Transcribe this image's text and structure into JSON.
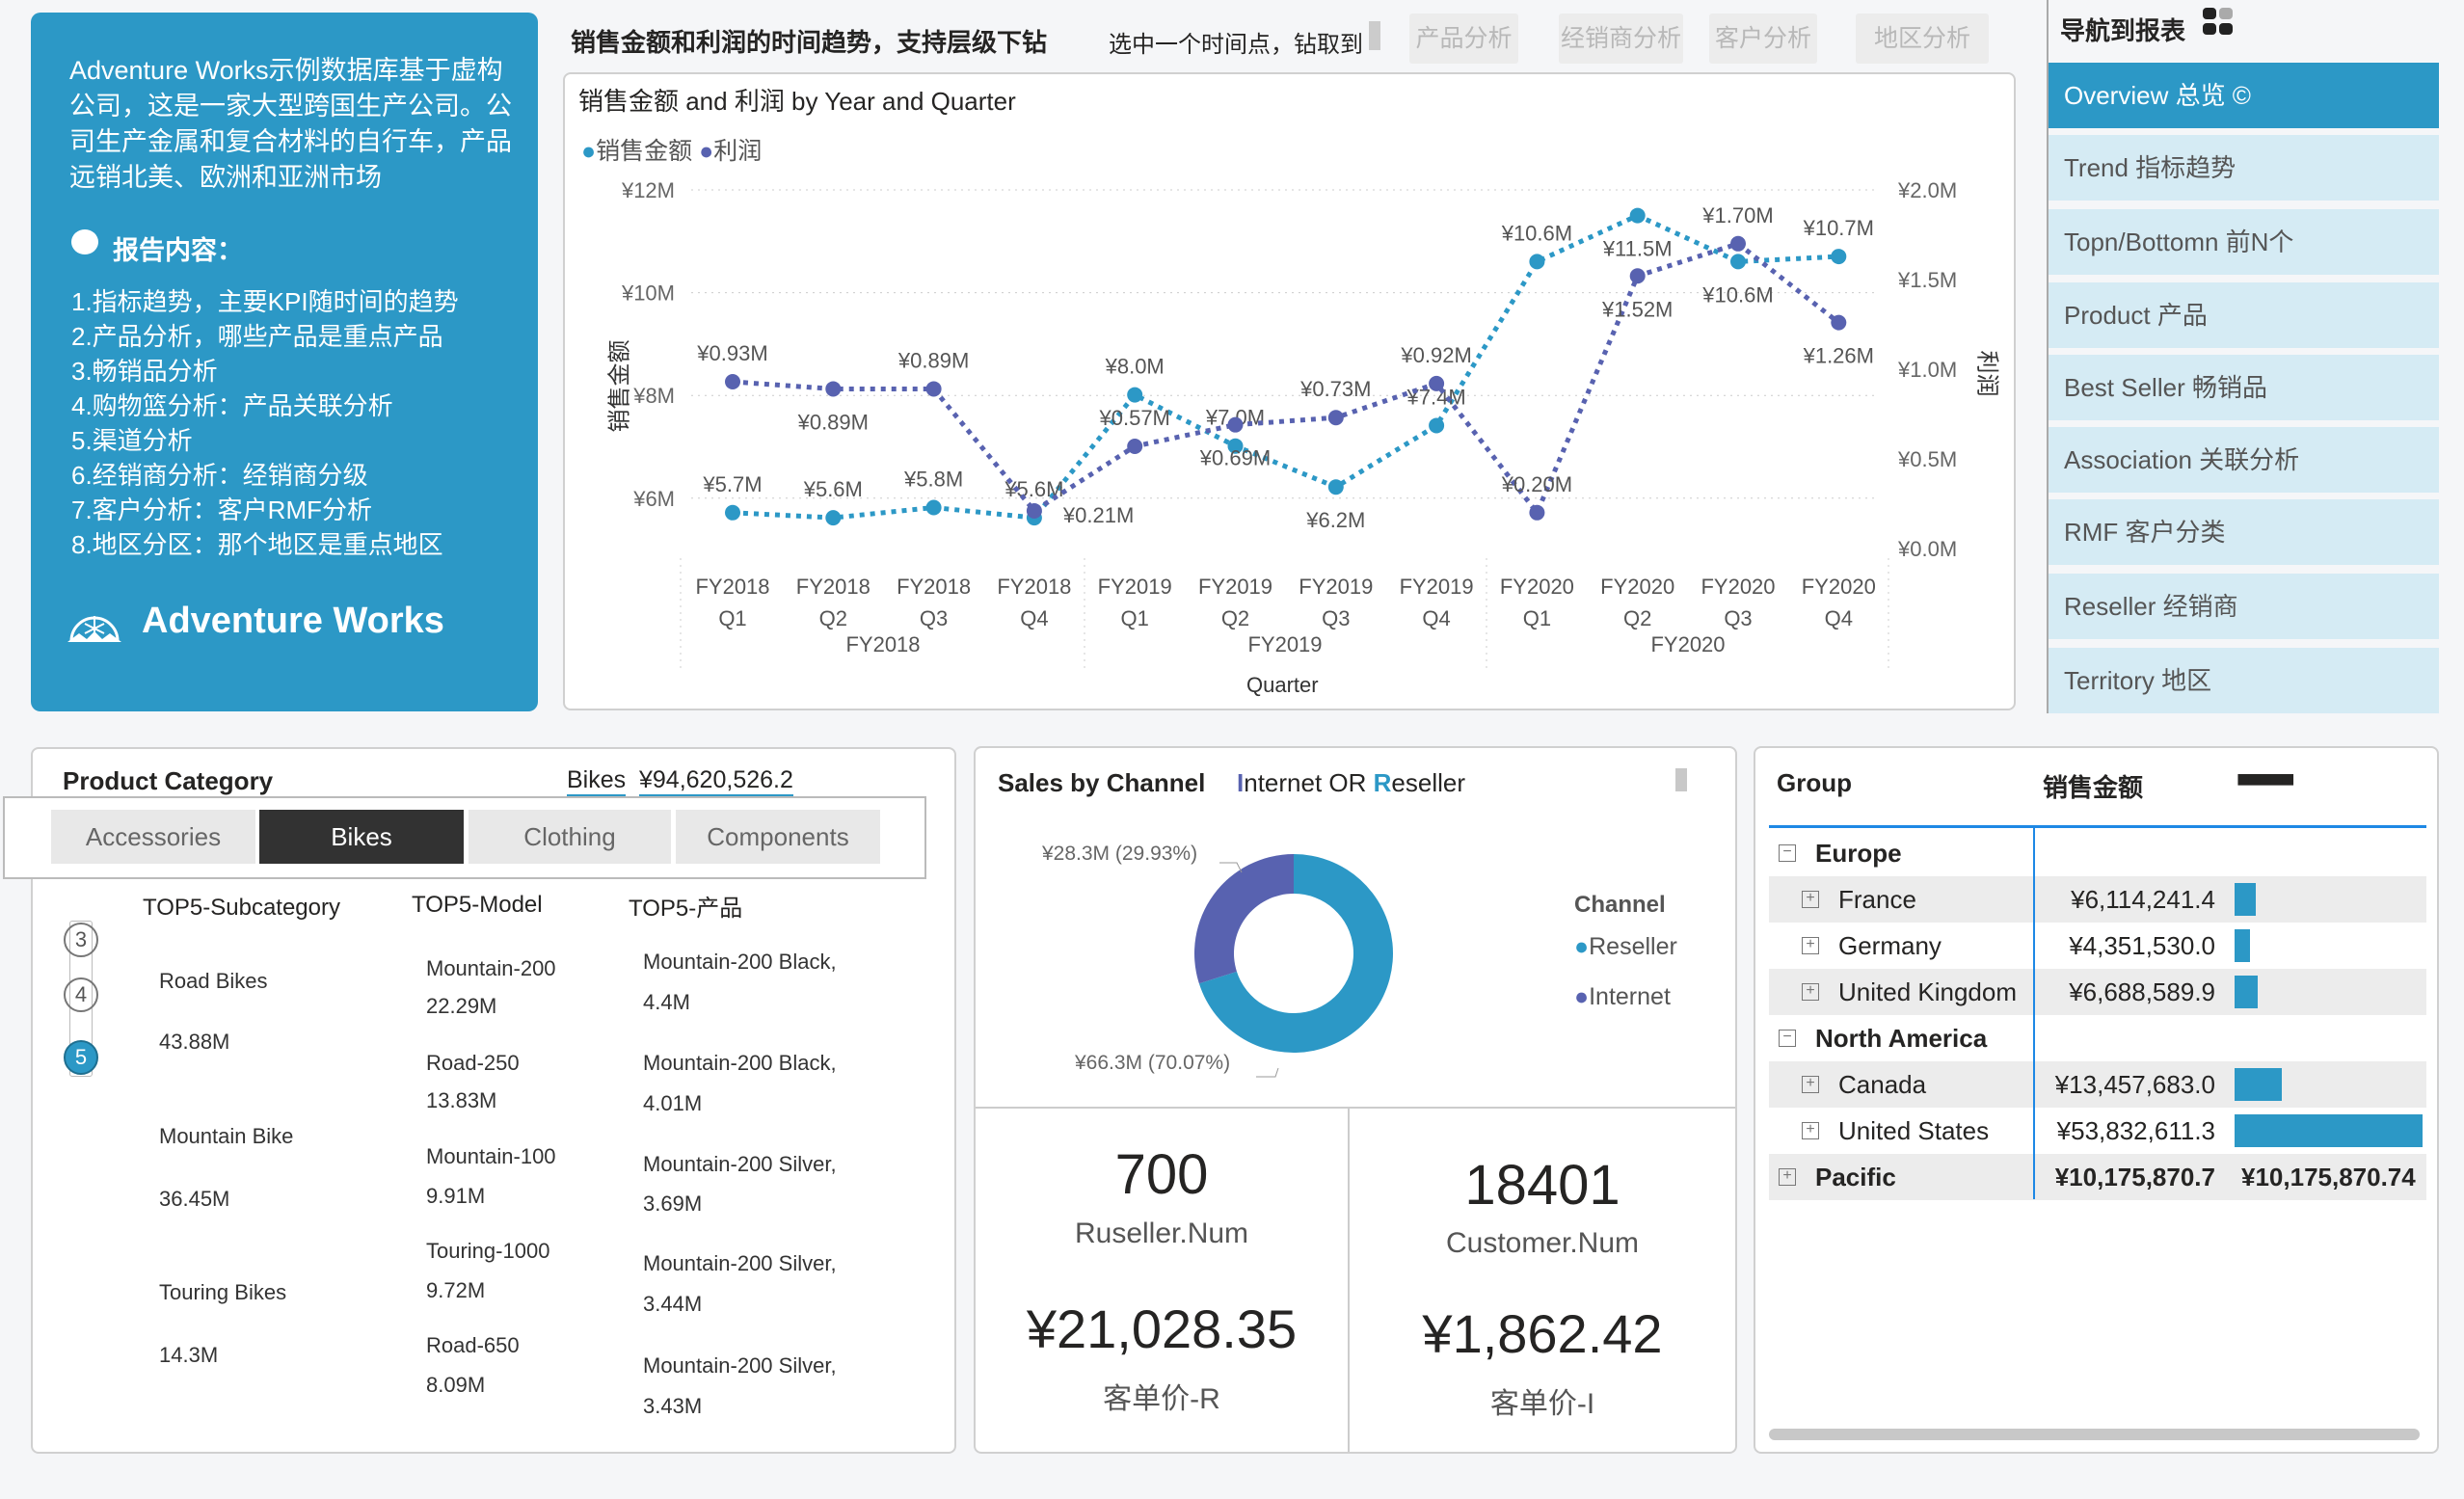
{
  "intro": {
    "description": "Adventure Works示例数据库基于虚构公司，这是一家大型跨国生产公司。公司生产金属和复合材料的自行车，产品远销北美、欧洲和亚洲市场",
    "report_title": "报告内容：",
    "items": [
      "1.指标趋势，主要KPI随时间的趋势",
      "2.产品分析，哪些产品是重点产品",
      "3.畅销品分析",
      "4.购物篮分析：产品关联分析",
      "5.渠道分析",
      "6.经销商分析：经销商分级",
      "7.客户分析：客户RMF分析",
      "8.地区分区：那个地区是重点地区"
    ],
    "brand": "Adventure Works"
  },
  "header": {
    "title": "销售金额和利润的时间趋势，支持层级下钻",
    "note": "选中一个时间点，钻取到",
    "buttons": [
      "产品分析",
      "经销商分析",
      "客户分析",
      "地区分析"
    ]
  },
  "nav": {
    "title": "导航到报表",
    "items": [
      "Overview 总览 ©",
      "Trend 指标趋势",
      "Topn/Bottomn 前N个",
      "Product 产品",
      "Best Seller 畅销品",
      "Association 关联分析",
      "RMF 客户分类",
      "Reseller 经销商",
      "Territory 地区"
    ],
    "active": 0
  },
  "chart_data": {
    "type": "line",
    "title": "销售金额 and 利润 by Year and Quarter",
    "xlabel": "Quarter",
    "ylabel": "销售金额",
    "y2label": "利润",
    "legend_position": "top-left",
    "grid": true,
    "categories": [
      "FY2018 Q1",
      "FY2018 Q2",
      "FY2018 Q3",
      "FY2018 Q4",
      "FY2019 Q1",
      "FY2019 Q2",
      "FY2019 Q3",
      "FY2019 Q4",
      "FY2020 Q1",
      "FY2020 Q2",
      "FY2020 Q3",
      "FY2020 Q4"
    ],
    "x_fy": [
      "FY2018",
      "FY2018",
      "FY2018",
      "FY2018",
      "FY2019",
      "FY2019",
      "FY2019",
      "FY2019",
      "FY2020",
      "FY2020",
      "FY2020",
      "FY2020"
    ],
    "x_q": [
      "Q1",
      "Q2",
      "Q3",
      "Q4",
      "Q1",
      "Q2",
      "Q3",
      "Q4",
      "Q1",
      "Q2",
      "Q3",
      "Q4"
    ],
    "year_groups": [
      "FY2018",
      "FY2019",
      "FY2020"
    ],
    "y_ticks": [
      "¥12M",
      "¥10M",
      "¥8M",
      "¥6M"
    ],
    "y2_ticks": [
      "¥2.0M",
      "¥1.5M",
      "¥1.0M",
      "¥0.5M",
      "¥0.0M"
    ],
    "ylim": [
      5,
      12
    ],
    "y2lim": [
      0,
      2
    ],
    "series": [
      {
        "name": "销售金额",
        "axis": "left",
        "color": "#2c98c6",
        "values": [
          5.7,
          5.6,
          5.8,
          5.6,
          8.0,
          7.0,
          6.2,
          7.4,
          10.6,
          11.5,
          10.6,
          10.7
        ]
      },
      {
        "name": "利润",
        "axis": "right",
        "color": "#5862b0",
        "values": [
          0.93,
          0.89,
          0.89,
          0.21,
          0.57,
          0.69,
          0.73,
          0.92,
          0.2,
          1.52,
          1.7,
          1.26
        ]
      }
    ]
  },
  "product": {
    "title": "Product Category",
    "selected": "Bikes",
    "selected_value": "¥94,620,526.2",
    "tabs": [
      "Accessories",
      "Bikes",
      "Clothing",
      "Components"
    ],
    "selected_tab": 1,
    "headers": [
      "TOP5-Subcategory",
      "TOP5-Model",
      "TOP5-产品"
    ],
    "ranks": [
      "3",
      "4",
      "5"
    ],
    "selected_rank": 2,
    "subcategories": [
      {
        "name": "Road Bikes",
        "value": "43.88M"
      },
      {
        "name": "Mountain Bike",
        "value": "36.45M"
      },
      {
        "name": "Touring Bikes",
        "value": "14.3M"
      }
    ],
    "models": [
      {
        "name": "Mountain-200",
        "value": "22.29M"
      },
      {
        "name": "Road-250",
        "value": "13.83M"
      },
      {
        "name": "Mountain-100",
        "value": "9.91M"
      },
      {
        "name": "Touring-1000",
        "value": "9.72M"
      },
      {
        "name": "Road-650",
        "value": "8.09M"
      }
    ],
    "products": [
      {
        "name": "Mountain-200 Black,",
        "value": "4.4M"
      },
      {
        "name": "Mountain-200 Black,",
        "value": "4.01M"
      },
      {
        "name": "Mountain-200 Silver,",
        "value": "3.69M"
      },
      {
        "name": "Mountain-200 Silver,",
        "value": "3.44M"
      },
      {
        "name": "Mountain-200 Silver,",
        "value": "3.43M"
      }
    ]
  },
  "channel": {
    "title": "Sales by Channel",
    "subtitle_parts": [
      "I",
      "nternet OR ",
      "R",
      "eseller"
    ],
    "legend_title": "Channel",
    "slices": [
      {
        "name": "Reseller",
        "value": 66.3,
        "percent": 70.07,
        "label": "¥66.3M (70.07%)",
        "color": "#2c98c6"
      },
      {
        "name": "Internet",
        "value": 28.3,
        "percent": 29.93,
        "label": "¥28.3M (29.93%)",
        "color": "#5862b0"
      }
    ],
    "kpis": [
      {
        "value": "700",
        "label": "Ruseller.Num",
        "value2": "¥21,028.35",
        "label2": "客单价-R"
      },
      {
        "value": "18401",
        "label": "Customer.Num",
        "value2": "¥1,862.42",
        "label2": "客单价-I"
      }
    ]
  },
  "matrix": {
    "headers": [
      "Group",
      "销售金额",
      "■■■■■"
    ],
    "rows": [
      {
        "label": "Europe",
        "level": 0,
        "expanded": true
      },
      {
        "label": "France",
        "level": 1,
        "value": "¥6,114,241.4",
        "amount": 6114241.4
      },
      {
        "label": "Germany",
        "level": 1,
        "value": "¥4,351,530.0",
        "amount": 4351530.0
      },
      {
        "label": "United Kingdom",
        "level": 1,
        "value": "¥6,688,589.9",
        "amount": 6688589.9
      },
      {
        "label": "North America",
        "level": 0,
        "expanded": true
      },
      {
        "label": "Canada",
        "level": 1,
        "value": "¥13,457,683.0",
        "amount": 13457683.0
      },
      {
        "label": "United States",
        "level": 1,
        "value": "¥53,832,611.3",
        "amount": 53832611.3
      },
      {
        "label": "Pacific",
        "level": 0,
        "expanded": false,
        "value": "¥10,175,870.7",
        "value2": "¥10,175,870.74"
      }
    ]
  }
}
